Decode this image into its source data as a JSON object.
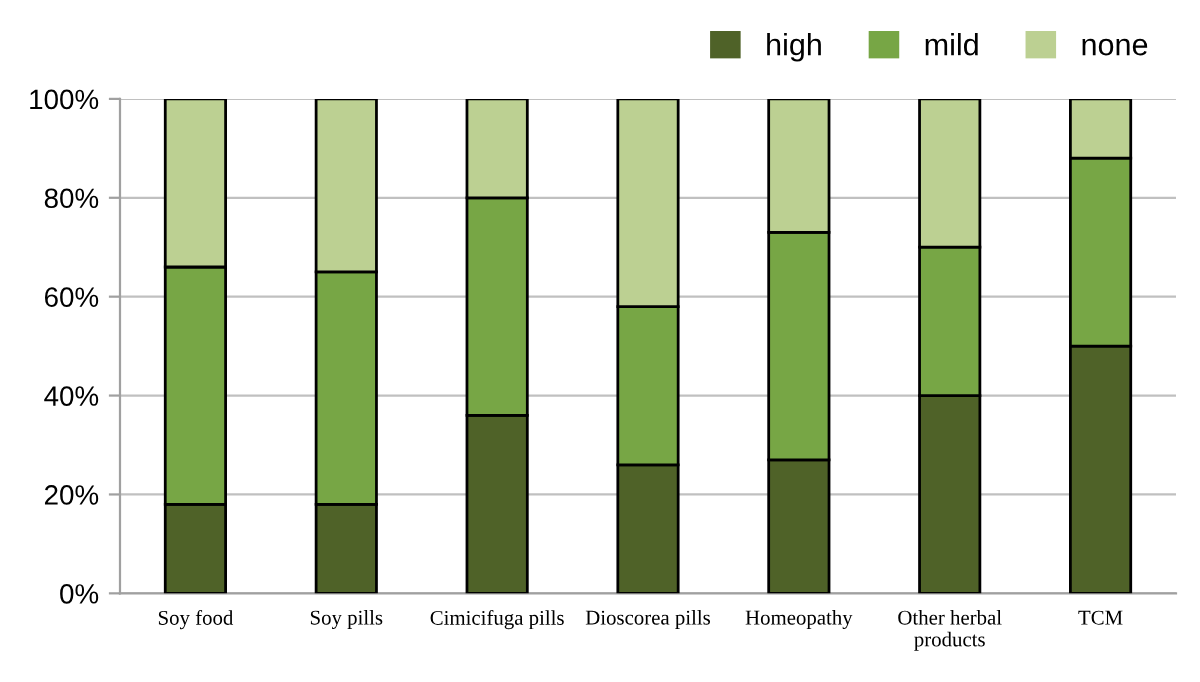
{
  "chart_data": {
    "type": "bar",
    "stacked": true,
    "categories": [
      "Soy food",
      "Soy pills",
      "Cimicifuga pills",
      "Dioscorea pills",
      "Homeopathy",
      "Other herbal\nproducts",
      "TCM"
    ],
    "series": [
      {
        "name": "high",
        "color": "#4f6228",
        "values": [
          18,
          18,
          36,
          26,
          27,
          40,
          50
        ]
      },
      {
        "name": "mild",
        "color": "#77a645",
        "values": [
          48,
          47,
          44,
          32,
          46,
          30,
          38
        ]
      },
      {
        "name": "none",
        "color": "#bcd092",
        "values": [
          34,
          35,
          20,
          42,
          27,
          30,
          12
        ]
      }
    ],
    "ylim": [
      0,
      100
    ],
    "yticks": [
      {
        "value": 0,
        "label": "0%"
      },
      {
        "value": 20,
        "label": "20%"
      },
      {
        "value": 40,
        "label": "40%"
      },
      {
        "value": 60,
        "label": "60%"
      },
      {
        "value": 80,
        "label": "80%"
      },
      {
        "value": 100,
        "label": "100%"
      }
    ],
    "grid": "y",
    "legend": "top right"
  }
}
